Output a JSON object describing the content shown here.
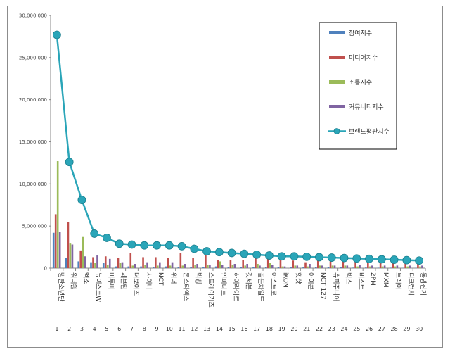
{
  "chart_data": {
    "type": "bar",
    "title": "",
    "xlabel": "",
    "ylabel": "",
    "ylim": [
      0,
      30000000
    ],
    "y_ticks": [
      "0",
      "5,000,000",
      "10,000,000",
      "15,000,000",
      "20,000,000",
      "25,000,000",
      "30,000,000"
    ],
    "grid": true,
    "legend_position": "top-right",
    "categories": [
      "방탄소년단",
      "워너원",
      "엑소",
      "뉴이스트W",
      "비투비",
      "세븐틴",
      "더보이즈",
      "샤이니",
      "NCT",
      "위너",
      "몬스타엑스",
      "빅뱅",
      "스트레이키즈",
      "인피니트",
      "하이라이트",
      "갓세븐",
      "골든차일드",
      "아스트로",
      "iKON",
      "핫샷",
      "아이콘",
      "NCT 127",
      "슈퍼주니어",
      "빅스",
      "비스트",
      "2PM",
      "MXM",
      "트레이",
      "디크런치",
      "동방신기"
    ],
    "rank_labels": [
      "1",
      "2",
      "3",
      "4",
      "5",
      "6",
      "7",
      "8",
      "9",
      "10",
      "11",
      "12",
      "13",
      "14",
      "15",
      "16",
      "17",
      "18",
      "19",
      "20",
      "21",
      "22",
      "23",
      "24",
      "25",
      "26",
      "27",
      "28",
      "29",
      "30"
    ],
    "series": [
      {
        "name": "참여지수",
        "kind": "bar",
        "color": "#4f81bd",
        "values": [
          4200000,
          1200000,
          800000,
          700000,
          600000,
          200000,
          200000,
          200000,
          100000,
          200000,
          150000,
          150000,
          100000,
          200000,
          150000,
          100000,
          100000,
          150000,
          100000,
          80000,
          150000,
          100000,
          100000,
          80000,
          60000,
          70000,
          50000,
          50000,
          40000,
          40000
        ]
      },
      {
        "name": "미디어지수",
        "kind": "bar",
        "color": "#c0504d",
        "values": [
          6400000,
          5500000,
          2100000,
          1300000,
          1400000,
          1200000,
          1800000,
          1300000,
          1300000,
          1200000,
          1800000,
          1200000,
          1700000,
          1000000,
          1000000,
          1000000,
          1200000,
          1100000,
          1000000,
          900000,
          700000,
          900000,
          800000,
          900000,
          800000,
          700000,
          600000,
          600000,
          600000,
          600000
        ]
      },
      {
        "name": "소통지수",
        "kind": "bar",
        "color": "#9bbb59",
        "values": [
          12700000,
          3000000,
          3700000,
          600000,
          400000,
          600000,
          300000,
          400000,
          300000,
          300000,
          300000,
          400000,
          400000,
          800000,
          400000,
          300000,
          500000,
          600000,
          200000,
          300000,
          200000,
          300000,
          300000,
          300000,
          200000,
          200000,
          200000,
          200000,
          200000,
          200000
        ]
      },
      {
        "name": "커뮤니티지수",
        "kind": "bar",
        "color": "#8064a2",
        "values": [
          4300000,
          2800000,
          1400000,
          1500000,
          1100000,
          700000,
          500000,
          700000,
          700000,
          700000,
          500000,
          500000,
          400000,
          400000,
          500000,
          500000,
          300000,
          400000,
          200000,
          300000,
          500000,
          300000,
          300000,
          300000,
          400000,
          300000,
          300000,
          300000,
          300000,
          300000
        ]
      },
      {
        "name": "브랜드평판지수",
        "kind": "line",
        "color": "#2aa5b8",
        "values": [
          27700000,
          12600000,
          8100000,
          4100000,
          3600000,
          2900000,
          2800000,
          2700000,
          2700000,
          2700000,
          2600000,
          2300000,
          2000000,
          1900000,
          1800000,
          1700000,
          1600000,
          1500000,
          1400000,
          1400000,
          1350000,
          1300000,
          1250000,
          1200000,
          1150000,
          1100000,
          1050000,
          1000000,
          950000,
          900000
        ]
      }
    ]
  }
}
